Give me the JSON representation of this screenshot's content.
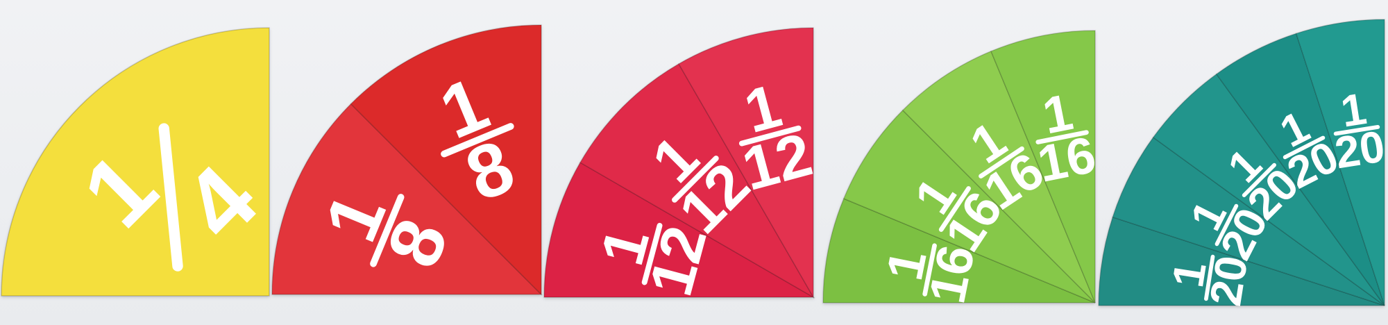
{
  "quarters": [
    {
      "label": "1/4",
      "pieces": [
        {
          "numerator": "1",
          "denominator": "4"
        }
      ],
      "colors": [
        "#f4df3c"
      ]
    },
    {
      "label": "1/8",
      "pieces": [
        {
          "numerator": "1",
          "denominator": "8"
        },
        {
          "numerator": "1",
          "denominator": "8"
        }
      ],
      "colors": [
        "#e2343a",
        "#dc2c2c"
      ]
    },
    {
      "label": "1/12",
      "pieces": [
        {
          "numerator": "1",
          "denominator": "12"
        },
        {
          "numerator": "1",
          "denominator": "12"
        },
        {
          "numerator": "1",
          "denominator": "12"
        }
      ],
      "colors": [
        "#dc2344",
        "#e02a48",
        "#e3304f"
      ]
    },
    {
      "label": "1/16",
      "pieces": [
        {
          "numerator": "1",
          "denominator": "16"
        },
        {
          "numerator": "1",
          "denominator": "16"
        },
        {
          "numerator": "1",
          "denominator": "16"
        },
        {
          "numerator": "1",
          "denominator": "16"
        }
      ],
      "colors": [
        "#7cc042",
        "#86c84a",
        "#8fcd50",
        "#85c84a"
      ]
    },
    {
      "label": "1/20",
      "pieces": [
        {
          "numerator": "1",
          "denominator": "20"
        },
        {
          "numerator": "1",
          "denominator": "20"
        },
        {
          "numerator": "1",
          "denominator": "20"
        },
        {
          "numerator": "1",
          "denominator": "20"
        },
        {
          "numerator": "1",
          "denominator": "20"
        }
      ],
      "colors": [
        "#218c84",
        "#249189",
        "#22958c",
        "#1f8e86",
        "#249a90"
      ]
    }
  ]
}
